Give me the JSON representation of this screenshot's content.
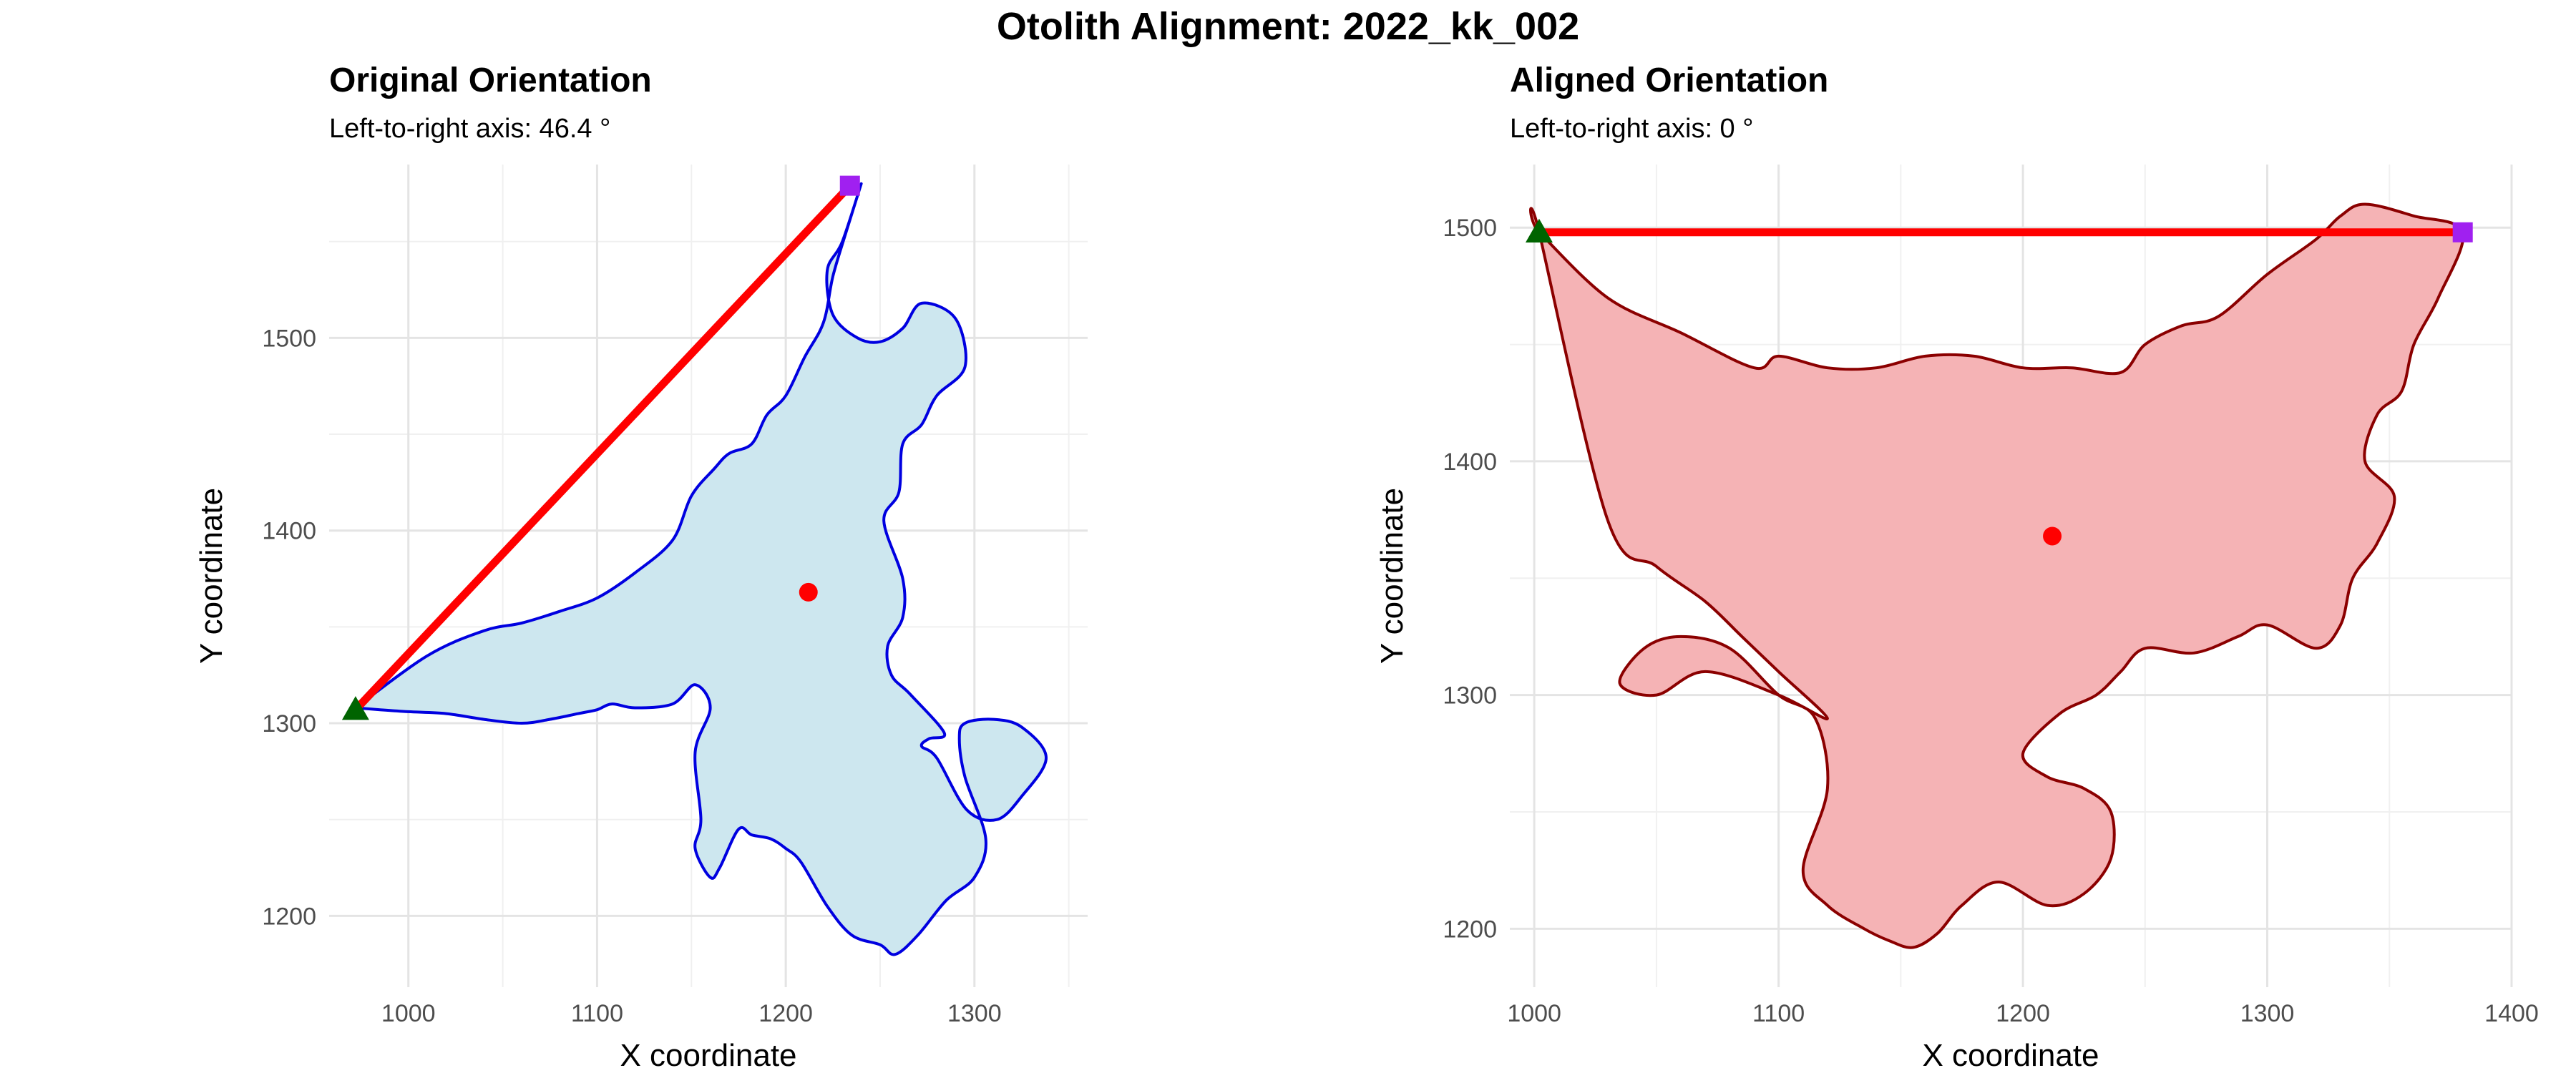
{
  "title": "Otolith Alignment: 2022_kk_002",
  "chart_data": [
    {
      "type": "area",
      "title": "Original Orientation",
      "subtitle": "Left-to-right axis: 46.4 °",
      "xlabel": "X coordinate",
      "ylabel": "Y coordinate",
      "xlim": [
        958,
        1360
      ],
      "ylim": [
        1163,
        1590
      ],
      "xticks": [
        1000,
        1100,
        1200,
        1300
      ],
      "yticks": [
        1200,
        1300,
        1400,
        1500
      ],
      "grid": true,
      "fill_color": "#cde7ef",
      "stroke_color": "#0000e0",
      "outline": {
        "x": [
          972,
          1010,
          1040,
          1060,
          1080,
          1100,
          1120,
          1140,
          1150,
          1162,
          1170,
          1182,
          1190,
          1200,
          1210,
          1220,
          1225,
          1232,
          1240,
          1230,
          1222,
          1225,
          1238,
          1250,
          1262,
          1272,
          1290,
          1295,
          1280,
          1272,
          1262,
          1260,
          1252,
          1262,
          1262,
          1254,
          1256,
          1266,
          1284,
          1276,
          1272,
          1280,
          1296,
          1312,
          1325,
          1338,
          1325,
          1310,
          1295,
          1292,
          1295,
          1306,
          1300,
          1285,
          1270,
          1258,
          1250,
          1235,
          1222,
          1208,
          1200,
          1192,
          1182,
          1175,
          1165,
          1160,
          1152,
          1155,
          1152,
          1160,
          1152,
          1140,
          1120,
          1108,
          1100,
          1090,
          1075,
          1060,
          1040,
          1020,
          1000,
          985,
          972
        ],
        "y": [
          1308,
          1335,
          1348,
          1352,
          1358,
          1365,
          1378,
          1395,
          1418,
          1432,
          1440,
          1445,
          1460,
          1470,
          1490,
          1508,
          1532,
          1555,
          1580,
          1550,
          1535,
          1512,
          1500,
          1498,
          1505,
          1518,
          1510,
          1485,
          1470,
          1455,
          1445,
          1420,
          1405,
          1375,
          1355,
          1340,
          1325,
          1315,
          1295,
          1292,
          1288,
          1282,
          1255,
          1250,
          1262,
          1282,
          1298,
          1302,
          1300,
          1292,
          1272,
          1240,
          1220,
          1208,
          1190,
          1180,
          1185,
          1190,
          1205,
          1228,
          1235,
          1240,
          1242,
          1245,
          1225,
          1220,
          1235,
          1250,
          1285,
          1308,
          1320,
          1310,
          1308,
          1310,
          1307,
          1305,
          1302,
          1300,
          1302,
          1305,
          1306,
          1307,
          1308
        ]
      },
      "centroid": {
        "x": 1212,
        "y": 1368,
        "color": "#ff0000"
      },
      "axis_line": {
        "x": [
          972,
          1234
        ],
        "y": [
          1307,
          1579
        ],
        "color": "#ff0000"
      },
      "left_point": {
        "x": 972,
        "y": 1307,
        "color": "#006400",
        "shape": "triangle"
      },
      "right_point": {
        "x": 1234,
        "y": 1579,
        "color": "#a020f0",
        "shape": "square"
      }
    },
    {
      "type": "area",
      "title": "Aligned Orientation",
      "subtitle": "Left-to-right axis: 0 °",
      "xlabel": "X coordinate",
      "ylabel": "Y coordinate",
      "xlim": [
        990,
        1400
      ],
      "ylim": [
        1175,
        1527
      ],
      "xticks": [
        1000,
        1100,
        1200,
        1300,
        1400
      ],
      "yticks": [
        1200,
        1300,
        1400,
        1500
      ],
      "grid": true,
      "fill_color": "#f5b3b5",
      "stroke_color": "#8b0000",
      "outline": {
        "x": [
          1002,
          1030,
          1060,
          1090,
          1100,
          1120,
          1140,
          1160,
          1180,
          1200,
          1220,
          1240,
          1250,
          1265,
          1280,
          1300,
          1320,
          1330,
          1340,
          1360,
          1380,
          1370,
          1360,
          1355,
          1345,
          1340,
          1352,
          1345,
          1335,
          1330,
          1320,
          1300,
          1288,
          1270,
          1250,
          1240,
          1230,
          1215,
          1200,
          1210,
          1225,
          1236,
          1236,
          1225,
          1210,
          1190,
          1175,
          1165,
          1155,
          1145,
          1135,
          1120,
          1110,
          1120,
          1115,
          1100,
          1080,
          1060,
          1045,
          1035,
          1050,
          1070,
          1100,
          1120,
          1100,
          1085,
          1070,
          1050,
          1030,
          1002
        ],
        "y": [
          1498,
          1470,
          1455,
          1440,
          1445,
          1440,
          1440,
          1445,
          1445,
          1440,
          1440,
          1438,
          1450,
          1458,
          1462,
          1480,
          1495,
          1505,
          1510,
          1505,
          1498,
          1470,
          1450,
          1430,
          1420,
          1400,
          1385,
          1365,
          1350,
          1330,
          1320,
          1330,
          1325,
          1318,
          1320,
          1310,
          1300,
          1292,
          1275,
          1265,
          1260,
          1250,
          1230,
          1215,
          1210,
          1220,
          1210,
          1198,
          1192,
          1195,
          1200,
          1210,
          1225,
          1260,
          1290,
          1300,
          1320,
          1325,
          1320,
          1305,
          1300,
          1310,
          1300,
          1290,
          1310,
          1325,
          1340,
          1355,
          1375,
          1498
        ]
      },
      "centroid": {
        "x": 1212,
        "y": 1368,
        "color": "#ff0000"
      },
      "axis_line": {
        "x": [
          1002,
          1380
        ],
        "y": [
          1498,
          1498
        ],
        "color": "#ff0000"
      },
      "left_point": {
        "x": 1002,
        "y": 1498,
        "color": "#006400",
        "shape": "triangle"
      },
      "right_point": {
        "x": 1380,
        "y": 1498,
        "color": "#a020f0",
        "shape": "square"
      }
    }
  ]
}
